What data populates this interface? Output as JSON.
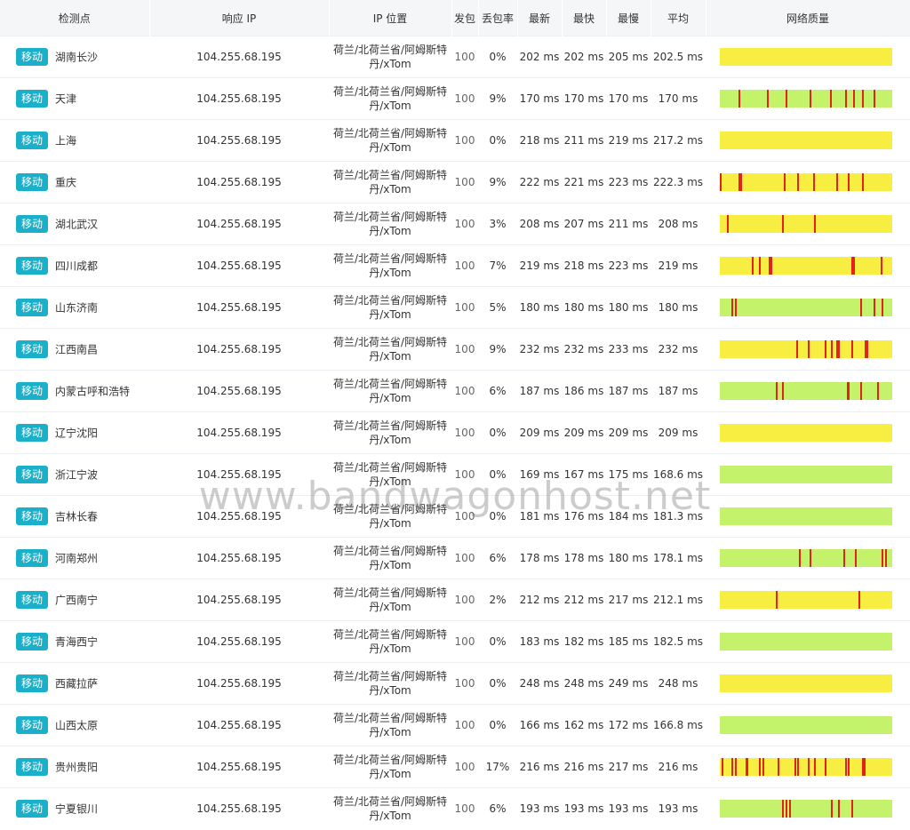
{
  "colors": {
    "badge": "#1bb0c9",
    "good": "#c4f26a",
    "medium": "#f8ee42",
    "loss": "#e0241c"
  },
  "headers": {
    "checkpoint": "检测点",
    "ip": "响应 IP",
    "location": "IP 位置",
    "sent": "发包",
    "loss": "丢包率",
    "latest": "最新",
    "fastest": "最快",
    "slowest": "最慢",
    "avg": "平均",
    "quality": "网络质量"
  },
  "watermark": "www.bandwagonhost.net",
  "rows": [
    {
      "isp": "移动",
      "city": "湖南长沙",
      "ip": "104.255.68.195",
      "geo1": "荷兰/北荷兰省/阿姆斯特",
      "geo2": "丹/xTom",
      "sent": "100",
      "loss": "0%",
      "latest": "202 ms",
      "fastest": "202 ms",
      "slowest": "205 ms",
      "avg": "202.5 ms",
      "quality": "medium",
      "loss_marks": []
    },
    {
      "isp": "移动",
      "city": "天津",
      "ip": "104.255.68.195",
      "geo1": "荷兰/北荷兰省/阿姆斯特",
      "geo2": "丹/xTom",
      "sent": "100",
      "loss": "9%",
      "latest": "170 ms",
      "fastest": "170 ms",
      "slowest": "170 ms",
      "avg": "170 ms",
      "quality": "good",
      "loss_marks": [
        0.11,
        0.28,
        0.39,
        0.53,
        0.65,
        0.74,
        0.79,
        0.84,
        0.91
      ]
    },
    {
      "isp": "移动",
      "city": "上海",
      "ip": "104.255.68.195",
      "geo1": "荷兰/北荷兰省/阿姆斯特",
      "geo2": "丹/xTom",
      "sent": "100",
      "loss": "0%",
      "latest": "218 ms",
      "fastest": "211 ms",
      "slowest": "219 ms",
      "avg": "217.2 ms",
      "quality": "medium",
      "loss_marks": []
    },
    {
      "isp": "移动",
      "city": "重庆",
      "ip": "104.255.68.195",
      "geo1": "荷兰/北荷兰省/阿姆斯特",
      "geo2": "丹/xTom",
      "sent": "100",
      "loss": "9%",
      "latest": "222 ms",
      "fastest": "221 ms",
      "slowest": "223 ms",
      "avg": "222.3 ms",
      "quality": "medium",
      "loss_marks": [
        0.0,
        0.11,
        0.12,
        0.38,
        0.46,
        0.55,
        0.69,
        0.76,
        0.84
      ]
    },
    {
      "isp": "移动",
      "city": "湖北武汉",
      "ip": "104.255.68.195",
      "geo1": "荷兰/北荷兰省/阿姆斯特",
      "geo2": "丹/xTom",
      "sent": "100",
      "loss": "3%",
      "latest": "208 ms",
      "fastest": "207 ms",
      "slowest": "211 ms",
      "avg": "208 ms",
      "quality": "medium",
      "loss_marks": [
        0.04,
        0.37,
        0.56
      ]
    },
    {
      "isp": "移动",
      "city": "四川成都",
      "ip": "104.255.68.195",
      "geo1": "荷兰/北荷兰省/阿姆斯特",
      "geo2": "丹/xTom",
      "sent": "100",
      "loss": "7%",
      "latest": "219 ms",
      "fastest": "218 ms",
      "slowest": "223 ms",
      "avg": "219 ms",
      "quality": "medium",
      "loss_marks": [
        0.19,
        0.23,
        0.29,
        0.3,
        0.78,
        0.79,
        0.95
      ]
    },
    {
      "isp": "移动",
      "city": "山东济南",
      "ip": "104.255.68.195",
      "geo1": "荷兰/北荷兰省/阿姆斯特",
      "geo2": "丹/xTom",
      "sent": "100",
      "loss": "5%",
      "latest": "180 ms",
      "fastest": "180 ms",
      "slowest": "180 ms",
      "avg": "180 ms",
      "quality": "good",
      "loss_marks": [
        0.07,
        0.09,
        0.83,
        0.91,
        0.96
      ]
    },
    {
      "isp": "移动",
      "city": "江西南昌",
      "ip": "104.255.68.195",
      "geo1": "荷兰/北荷兰省/阿姆斯特",
      "geo2": "丹/xTom",
      "sent": "100",
      "loss": "9%",
      "latest": "232 ms",
      "fastest": "232 ms",
      "slowest": "233 ms",
      "avg": "232 ms",
      "quality": "medium",
      "loss_marks": [
        0.45,
        0.52,
        0.62,
        0.66,
        0.69,
        0.7,
        0.78,
        0.86,
        0.87
      ]
    },
    {
      "isp": "移动",
      "city": "内蒙古呼和浩特",
      "ip": "104.255.68.195",
      "geo1": "荷兰/北荷兰省/阿姆斯特",
      "geo2": "丹/xTom",
      "sent": "100",
      "loss": "6%",
      "latest": "187 ms",
      "fastest": "186 ms",
      "slowest": "187 ms",
      "avg": "187 ms",
      "quality": "good",
      "loss_marks": [
        0.33,
        0.37,
        0.75,
        0.76,
        0.83,
        0.93
      ]
    },
    {
      "isp": "移动",
      "city": "辽宁沈阳",
      "ip": "104.255.68.195",
      "geo1": "荷兰/北荷兰省/阿姆斯特",
      "geo2": "丹/xTom",
      "sent": "100",
      "loss": "0%",
      "latest": "209 ms",
      "fastest": "209 ms",
      "slowest": "209 ms",
      "avg": "209 ms",
      "quality": "medium",
      "loss_marks": []
    },
    {
      "isp": "移动",
      "city": "浙江宁波",
      "ip": "104.255.68.195",
      "geo1": "荷兰/北荷兰省/阿姆斯特",
      "geo2": "丹/xTom",
      "sent": "100",
      "loss": "0%",
      "latest": "169 ms",
      "fastest": "167 ms",
      "slowest": "175 ms",
      "avg": "168.6 ms",
      "quality": "good",
      "loss_marks": []
    },
    {
      "isp": "移动",
      "city": "吉林长春",
      "ip": "104.255.68.195",
      "geo1": "荷兰/北荷兰省/阿姆斯特",
      "geo2": "丹/xTom",
      "sent": "100",
      "loss": "0%",
      "latest": "181 ms",
      "fastest": "176 ms",
      "slowest": "184 ms",
      "avg": "181.3 ms",
      "quality": "good",
      "loss_marks": []
    },
    {
      "isp": "移动",
      "city": "河南郑州",
      "ip": "104.255.68.195",
      "geo1": "荷兰/北荷兰省/阿姆斯特",
      "geo2": "丹/xTom",
      "sent": "100",
      "loss": "6%",
      "latest": "178 ms",
      "fastest": "178 ms",
      "slowest": "180 ms",
      "avg": "178.1 ms",
      "quality": "good",
      "loss_marks": [
        0.47,
        0.53,
        0.73,
        0.8,
        0.96,
        0.98
      ]
    },
    {
      "isp": "移动",
      "city": "广西南宁",
      "ip": "104.255.68.195",
      "geo1": "荷兰/北荷兰省/阿姆斯特",
      "geo2": "丹/xTom",
      "sent": "100",
      "loss": "2%",
      "latest": "212 ms",
      "fastest": "212 ms",
      "slowest": "217 ms",
      "avg": "212.1 ms",
      "quality": "medium",
      "loss_marks": [
        0.33,
        0.82
      ]
    },
    {
      "isp": "移动",
      "city": "青海西宁",
      "ip": "104.255.68.195",
      "geo1": "荷兰/北荷兰省/阿姆斯特",
      "geo2": "丹/xTom",
      "sent": "100",
      "loss": "0%",
      "latest": "183 ms",
      "fastest": "182 ms",
      "slowest": "185 ms",
      "avg": "182.5 ms",
      "quality": "good",
      "loss_marks": []
    },
    {
      "isp": "移动",
      "city": "西藏拉萨",
      "ip": "104.255.68.195",
      "geo1": "荷兰/北荷兰省/阿姆斯特",
      "geo2": "丹/xTom",
      "sent": "100",
      "loss": "0%",
      "latest": "248 ms",
      "fastest": "248 ms",
      "slowest": "249 ms",
      "avg": "248 ms",
      "quality": "medium",
      "loss_marks": []
    },
    {
      "isp": "移动",
      "city": "山西太原",
      "ip": "104.255.68.195",
      "geo1": "荷兰/北荷兰省/阿姆斯特",
      "geo2": "丹/xTom",
      "sent": "100",
      "loss": "0%",
      "latest": "166 ms",
      "fastest": "162 ms",
      "slowest": "172 ms",
      "avg": "166.8 ms",
      "quality": "good",
      "loss_marks": []
    },
    {
      "isp": "移动",
      "city": "贵州贵阳",
      "ip": "104.255.68.195",
      "geo1": "荷兰/北荷兰省/阿姆斯特",
      "geo2": "丹/xTom",
      "sent": "100",
      "loss": "17%",
      "latest": "216 ms",
      "fastest": "216 ms",
      "slowest": "217 ms",
      "avg": "216 ms",
      "quality": "medium",
      "loss_marks": [
        0.01,
        0.07,
        0.09,
        0.15,
        0.16,
        0.23,
        0.25,
        0.34,
        0.44,
        0.46,
        0.52,
        0.56,
        0.62,
        0.74,
        0.76,
        0.84,
        0.85
      ]
    },
    {
      "isp": "移动",
      "city": "宁夏银川",
      "ip": "104.255.68.195",
      "geo1": "荷兰/北荷兰省/阿姆斯特",
      "geo2": "丹/xTom",
      "sent": "100",
      "loss": "6%",
      "latest": "193 ms",
      "fastest": "193 ms",
      "slowest": "193 ms",
      "avg": "193 ms",
      "quality": "good",
      "loss_marks": [
        0.37,
        0.39,
        0.41,
        0.66,
        0.7,
        0.78
      ]
    }
  ]
}
